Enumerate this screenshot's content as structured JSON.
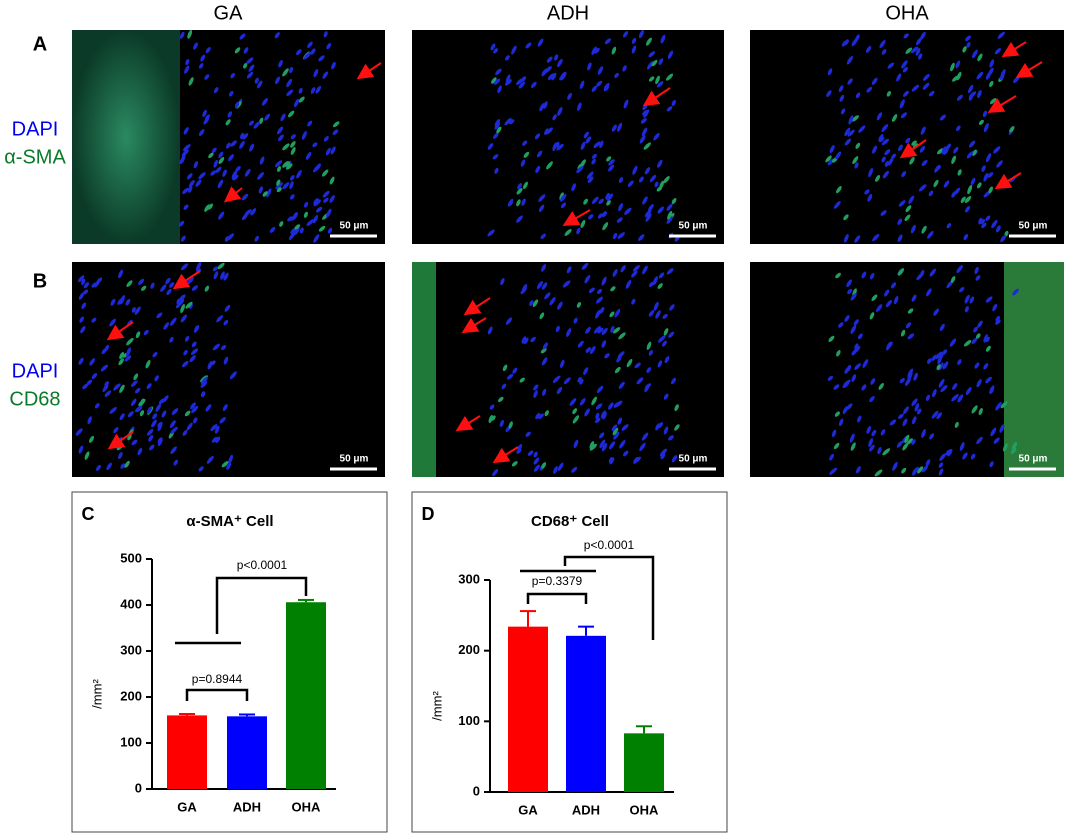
{
  "figure": {
    "panels": [
      "A",
      "B"
    ],
    "columns": [
      "GA",
      "ADH",
      "OHA"
    ],
    "rows": [
      [
        "DAPI",
        "α-SMA"
      ],
      [
        "DAPI",
        "CD68"
      ]
    ],
    "scale_bar": "50 μm"
  },
  "chart_data": [
    {
      "type": "bar",
      "panel_label": "C",
      "title": "α-SMA⁺ Cell",
      "ylabel": "/mm²",
      "categories": [
        "GA",
        "ADH",
        "OHA"
      ],
      "values": [
        160,
        158,
        406
      ],
      "errors": [
        3,
        4,
        5
      ],
      "colors": [
        "#ff0000",
        "#0000ff",
        "#008000"
      ],
      "ylim": [
        0,
        500
      ],
      "yticks": [
        0,
        100,
        200,
        300,
        400,
        500
      ],
      "annotations": [
        "p=0.8944",
        "p<0.0001"
      ]
    },
    {
      "type": "bar",
      "panel_label": "D",
      "title": "CD68⁺ Cell",
      "ylabel": "/mm²",
      "categories": [
        "GA",
        "ADH",
        "OHA"
      ],
      "values": [
        234,
        221,
        83
      ],
      "errors": [
        22,
        13,
        10
      ],
      "colors": [
        "#ff0000",
        "#0000ff",
        "#008000"
      ],
      "ylim": [
        0,
        300
      ],
      "yticks": [
        0,
        100,
        200,
        300
      ],
      "annotations": [
        "p=0.3379",
        "p<0.0001"
      ]
    }
  ]
}
